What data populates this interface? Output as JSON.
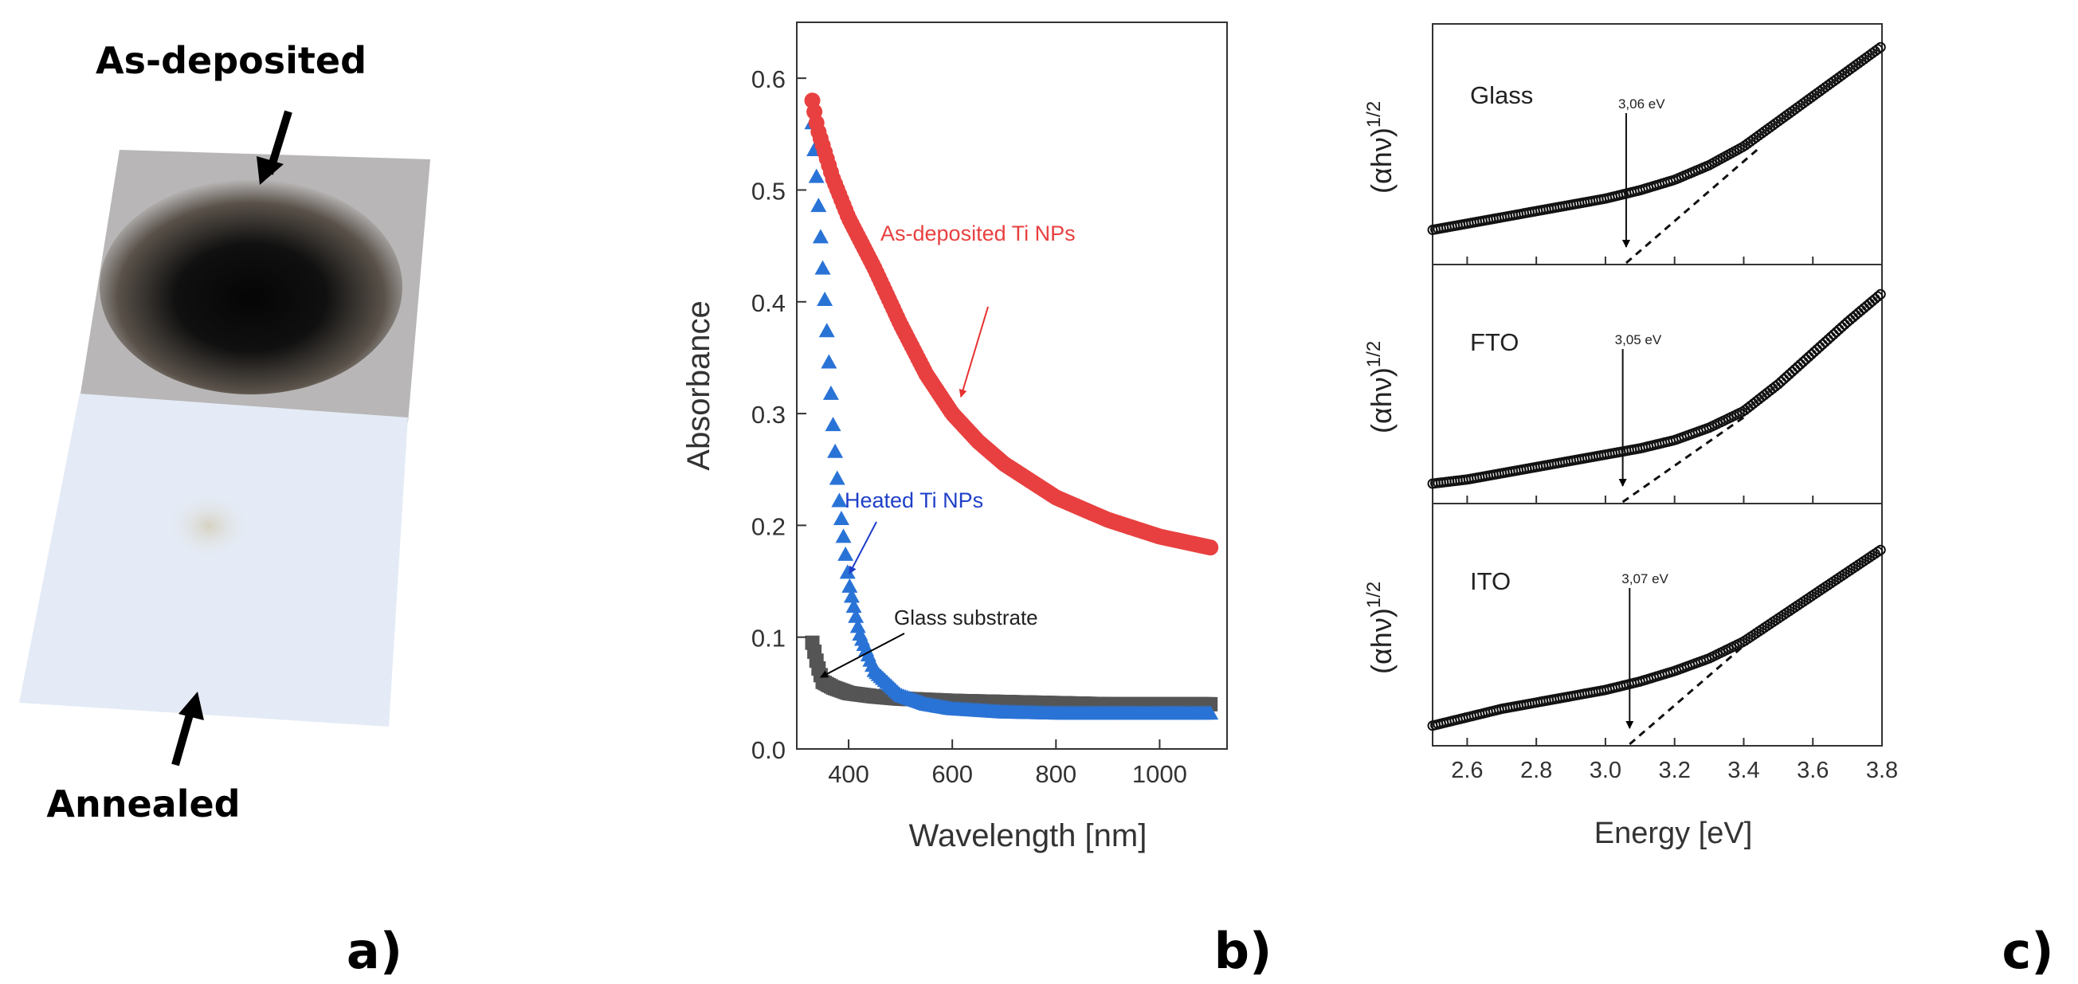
{
  "panel_a": {
    "label_top": "As-deposited",
    "label_bottom": "Annealed",
    "panel_label": "a)"
  },
  "panel_b": {
    "panel_label": "b)"
  },
  "panel_c": {
    "panel_label": "c)"
  },
  "chart_data": [
    {
      "type": "scatter",
      "xlabel": "Wavelength [nm]",
      "ylabel": "Absorbance",
      "xlim": [
        300,
        1130
      ],
      "ylim": [
        0,
        0.65
      ],
      "xticks": [
        400,
        600,
        800,
        1000
      ],
      "yticks": [
        0.0,
        0.1,
        0.2,
        0.3,
        0.4,
        0.5,
        0.6
      ],
      "grid": false,
      "series": [
        {
          "name": "As-deposited Ti NPs",
          "color": "#e84040",
          "marker": "circle",
          "x": [
            330,
            340,
            350,
            370,
            400,
            450,
            500,
            550,
            600,
            650,
            700,
            800,
            900,
            1000,
            1100
          ],
          "y": [
            0.58,
            0.555,
            0.54,
            0.51,
            0.475,
            0.43,
            0.38,
            0.335,
            0.3,
            0.275,
            0.255,
            0.225,
            0.205,
            0.19,
            0.18
          ]
        },
        {
          "name": "Heated Ti NPs",
          "color": "#2a73d6",
          "marker": "triangle",
          "x": [
            330,
            340,
            350,
            360,
            370,
            380,
            400,
            420,
            450,
            500,
            550,
            600,
            700,
            800,
            1000,
            1100
          ],
          "y": [
            0.56,
            0.5,
            0.43,
            0.36,
            0.29,
            0.23,
            0.15,
            0.105,
            0.07,
            0.048,
            0.04,
            0.036,
            0.033,
            0.032,
            0.032,
            0.032
          ]
        },
        {
          "name": "Glass substrate",
          "color": "#555555",
          "marker": "square",
          "x": [
            330,
            340,
            350,
            370,
            400,
            450,
            500,
            600,
            700,
            800,
            900,
            1000,
            1100
          ],
          "y": [
            0.095,
            0.075,
            0.06,
            0.055,
            0.05,
            0.047,
            0.045,
            0.043,
            0.042,
            0.041,
            0.04,
            0.04,
            0.04
          ]
        }
      ],
      "annotations": [
        {
          "text": "As-deposited Ti NPs",
          "color": "#e84040"
        },
        {
          "text": "Heated Ti NPs",
          "color": "#1f3fc8"
        },
        {
          "text": "Glass substrate",
          "color": "#222222"
        }
      ]
    },
    {
      "type": "scatter",
      "xlabel": "Energy [eV]",
      "ylabel": "(αhν)1/2",
      "xlim": [
        2.5,
        3.8
      ],
      "xticks": [
        2.6,
        2.8,
        3.0,
        3.2,
        3.4,
        3.6,
        3.8
      ],
      "grid": false,
      "subplots": [
        {
          "label": "Glass",
          "bandgap_label": "3,06 eV",
          "bandgap": 3.06,
          "x": [
            2.5,
            2.6,
            2.7,
            2.8,
            2.9,
            3.0,
            3.1,
            3.2,
            3.3,
            3.4,
            3.5,
            3.6,
            3.7,
            3.8
          ],
          "y": [
            0.12,
            0.15,
            0.18,
            0.21,
            0.24,
            0.27,
            0.31,
            0.36,
            0.43,
            0.52,
            0.64,
            0.76,
            0.88,
            1.0
          ],
          "tangent": [
            [
              3.06,
              0.0
            ],
            [
              3.45,
              0.52
            ]
          ]
        },
        {
          "label": "FTO",
          "bandgap_label": "3,05 eV",
          "bandgap": 3.05,
          "x": [
            2.5,
            2.6,
            2.7,
            2.8,
            2.9,
            3.0,
            3.1,
            3.2,
            3.3,
            3.4,
            3.5,
            3.6,
            3.7,
            3.8
          ],
          "y": [
            0.05,
            0.07,
            0.1,
            0.13,
            0.16,
            0.19,
            0.22,
            0.26,
            0.32,
            0.4,
            0.53,
            0.68,
            0.83,
            0.97
          ],
          "tangent": [
            [
              3.05,
              0.0
            ],
            [
              3.4,
              0.37
            ]
          ]
        },
        {
          "label": "ITO",
          "bandgap_label": "3,07 eV",
          "bandgap": 3.07,
          "x": [
            2.5,
            2.6,
            2.7,
            2.8,
            2.9,
            3.0,
            3.1,
            3.2,
            3.3,
            3.4,
            3.5,
            3.6,
            3.7,
            3.8
          ],
          "y": [
            0.05,
            0.09,
            0.13,
            0.16,
            0.19,
            0.22,
            0.26,
            0.31,
            0.37,
            0.45,
            0.56,
            0.67,
            0.78,
            0.89
          ],
          "tangent": [
            [
              3.07,
              0.0
            ],
            [
              3.4,
              0.43
            ]
          ]
        }
      ]
    }
  ]
}
